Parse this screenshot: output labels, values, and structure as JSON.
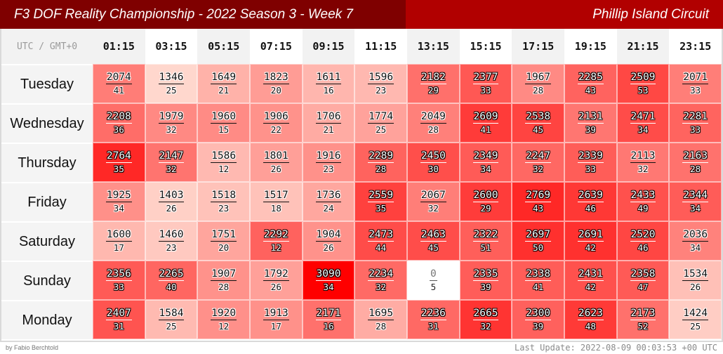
{
  "header": {
    "title": "F3 DOF Reality Championship - 2022 Season 3 - Week 7",
    "track": "Phillip Island Circuit"
  },
  "grid": {
    "corner_label": "UTC / GMT+0"
  },
  "footer": {
    "credit": "by Fabio Berchtold",
    "last_update": "Last Update: 2022-08-09 00:03:53 +00 UTC"
  },
  "colors": {
    "title_left_bg": "#7f0000",
    "title_right_bg": "#b10000",
    "heat_low": "#ffffff",
    "heat_high": "#ff0000"
  },
  "chart_data": {
    "type": "heatmap",
    "title": "F3 DOF Reality Championship - 2022 Season 3 - Week 7",
    "subtitle": "Phillip Island Circuit",
    "xlabel": "UTC / GMT+0",
    "x": [
      "01:15",
      "03:15",
      "05:15",
      "07:15",
      "09:15",
      "11:15",
      "13:15",
      "15:15",
      "17:15",
      "19:15",
      "21:15",
      "23:15"
    ],
    "y": [
      "Tuesday",
      "Wednesday",
      "Thursday",
      "Friday",
      "Saturday",
      "Sunday",
      "Monday"
    ],
    "values": [
      [
        2074,
        1346,
        1649,
        1823,
        1611,
        1596,
        2182,
        2377,
        1967,
        2285,
        2509,
        2071
      ],
      [
        2208,
        1979,
        1960,
        1906,
        1706,
        1774,
        2049,
        2609,
        2538,
        2131,
        2471,
        2281
      ],
      [
        2764,
        2147,
        1586,
        1801,
        1916,
        2289,
        2450,
        2349,
        2247,
        2339,
        2113,
        2163
      ],
      [
        1925,
        1403,
        1518,
        1517,
        1736,
        2559,
        2067,
        2600,
        2769,
        2639,
        2433,
        2344
      ],
      [
        1600,
        1460,
        1751,
        2292,
        1904,
        2473,
        2463,
        2322,
        2697,
        2691,
        2520,
        2036
      ],
      [
        2356,
        2265,
        1907,
        1792,
        3090,
        2234,
        0,
        2335,
        2338,
        2431,
        2358,
        1534
      ],
      [
        2407,
        1584,
        1920,
        1913,
        2171,
        1695,
        2236,
        2665,
        2300,
        2623,
        2173,
        1424
      ]
    ],
    "counts": [
      [
        41,
        25,
        21,
        20,
        16,
        23,
        29,
        33,
        28,
        43,
        53,
        33
      ],
      [
        36,
        32,
        15,
        22,
        21,
        25,
        28,
        41,
        45,
        39,
        34,
        33
      ],
      [
        35,
        32,
        12,
        26,
        23,
        28,
        30,
        34,
        32,
        33,
        32,
        28
      ],
      [
        34,
        26,
        23,
        18,
        24,
        35,
        32,
        29,
        43,
        46,
        49,
        34
      ],
      [
        17,
        23,
        20,
        12,
        26,
        44,
        45,
        51,
        50,
        42,
        46,
        34
      ],
      [
        33,
        40,
        28,
        26,
        34,
        32,
        5,
        39,
        41,
        42,
        47,
        26
      ],
      [
        31,
        25,
        12,
        17,
        16,
        28,
        31,
        32,
        39,
        48,
        52,
        25
      ]
    ]
  }
}
